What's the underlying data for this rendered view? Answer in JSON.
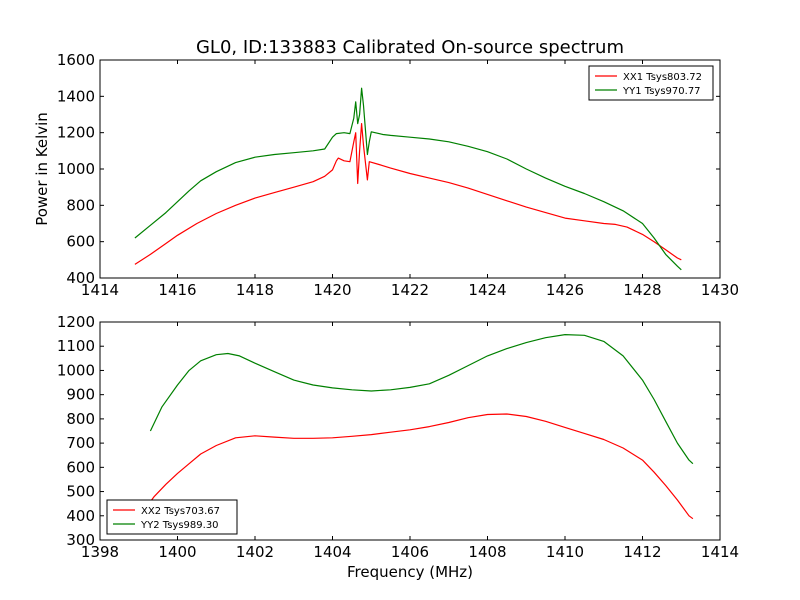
{
  "chart_data": [
    {
      "type": "line",
      "title": "GL0, ID:133883 Calibrated On-source spectrum",
      "xlabel": "",
      "ylabel": "Power in Kelvin",
      "xlim": [
        1414,
        1430
      ],
      "ylim": [
        400,
        1600
      ],
      "xticks": [
        1414,
        1416,
        1418,
        1420,
        1422,
        1424,
        1426,
        1428,
        1430
      ],
      "yticks": [
        400,
        600,
        800,
        1000,
        1200,
        1400,
        1600
      ],
      "grid": false,
      "legend_position": "top-right",
      "series": [
        {
          "name": "XX1 Tsys803.72",
          "color": "#ff0000",
          "points": [
            [
              1414.9,
              475
            ],
            [
              1415.3,
              530
            ],
            [
              1415.7,
              590
            ],
            [
              1416,
              635
            ],
            [
              1416.5,
              700
            ],
            [
              1417,
              755
            ],
            [
              1417.5,
              800
            ],
            [
              1418,
              840
            ],
            [
              1418.5,
              870
            ],
            [
              1419,
              900
            ],
            [
              1419.5,
              930
            ],
            [
              1419.8,
              960
            ],
            [
              1420.0,
              995
            ],
            [
              1420.1,
              1045
            ],
            [
              1420.15,
              1060
            ],
            [
              1420.3,
              1045
            ],
            [
              1420.45,
              1040
            ],
            [
              1420.55,
              1150
            ],
            [
              1420.6,
              1200
            ],
            [
              1420.65,
              920
            ],
            [
              1420.7,
              1100
            ],
            [
              1420.75,
              1250
            ],
            [
              1420.8,
              1130
            ],
            [
              1420.9,
              940
            ],
            [
              1420.95,
              1040
            ],
            [
              1421.2,
              1025
            ],
            [
              1421.5,
              1005
            ],
            [
              1422,
              975
            ],
            [
              1422.5,
              950
            ],
            [
              1423,
              925
            ],
            [
              1423.5,
              895
            ],
            [
              1424,
              860
            ],
            [
              1424.5,
              825
            ],
            [
              1425,
              790
            ],
            [
              1425.5,
              760
            ],
            [
              1426,
              730
            ],
            [
              1426.5,
              715
            ],
            [
              1427,
              700
            ],
            [
              1427.3,
              695
            ],
            [
              1427.6,
              680
            ],
            [
              1428,
              640
            ],
            [
              1428.3,
              600
            ],
            [
              1428.6,
              555
            ],
            [
              1428.9,
              510
            ],
            [
              1429.0,
              500
            ]
          ]
        },
        {
          "name": "YY1 Tsys970.77",
          "color": "#008000",
          "points": [
            [
              1414.9,
              620
            ],
            [
              1415.3,
              690
            ],
            [
              1415.7,
              760
            ],
            [
              1416,
              820
            ],
            [
              1416.3,
              880
            ],
            [
              1416.6,
              935
            ],
            [
              1417,
              985
            ],
            [
              1417.5,
              1035
            ],
            [
              1418,
              1065
            ],
            [
              1418.5,
              1080
            ],
            [
              1419,
              1090
            ],
            [
              1419.5,
              1100
            ],
            [
              1419.8,
              1110
            ],
            [
              1420.0,
              1175
            ],
            [
              1420.1,
              1195
            ],
            [
              1420.3,
              1200
            ],
            [
              1420.45,
              1195
            ],
            [
              1420.55,
              1280
            ],
            [
              1420.6,
              1370
            ],
            [
              1420.65,
              1250
            ],
            [
              1420.7,
              1300
            ],
            [
              1420.75,
              1445
            ],
            [
              1420.8,
              1350
            ],
            [
              1420.9,
              1080
            ],
            [
              1420.95,
              1150
            ],
            [
              1421.0,
              1205
            ],
            [
              1421.3,
              1190
            ],
            [
              1421.5,
              1185
            ],
            [
              1422,
              1175
            ],
            [
              1422.5,
              1165
            ],
            [
              1423,
              1150
            ],
            [
              1423.5,
              1125
            ],
            [
              1424,
              1095
            ],
            [
              1424.5,
              1055
            ],
            [
              1425,
              1000
            ],
            [
              1425.5,
              950
            ],
            [
              1426,
              905
            ],
            [
              1426.5,
              865
            ],
            [
              1427,
              820
            ],
            [
              1427.5,
              770
            ],
            [
              1428,
              700
            ],
            [
              1428.3,
              620
            ],
            [
              1428.6,
              530
            ],
            [
              1428.9,
              465
            ],
            [
              1429.0,
              445
            ]
          ]
        }
      ]
    },
    {
      "type": "line",
      "title": "",
      "xlabel": "Frequency (MHz)",
      "ylabel": "",
      "xlim": [
        1398,
        1414
      ],
      "ylim": [
        300,
        1200
      ],
      "xticks": [
        1398,
        1400,
        1402,
        1404,
        1406,
        1408,
        1410,
        1412,
        1414
      ],
      "yticks": [
        300,
        400,
        500,
        600,
        700,
        800,
        900,
        1000,
        1100,
        1200
      ],
      "grid": false,
      "legend_position": "bottom-left",
      "series": [
        {
          "name": "XX2 Tsys703.67",
          "color": "#ff0000",
          "points": [
            [
              1399.1,
              415
            ],
            [
              1399.4,
              480
            ],
            [
              1399.7,
              530
            ],
            [
              1400,
              575
            ],
            [
              1400.3,
              615
            ],
            [
              1400.6,
              655
            ],
            [
              1401,
              690
            ],
            [
              1401.5,
              722
            ],
            [
              1402,
              730
            ],
            [
              1402.5,
              725
            ],
            [
              1403,
              720
            ],
            [
              1403.5,
              720
            ],
            [
              1404,
              722
            ],
            [
              1404.5,
              728
            ],
            [
              1405,
              735
            ],
            [
              1405.5,
              745
            ],
            [
              1406,
              755
            ],
            [
              1406.5,
              768
            ],
            [
              1407,
              785
            ],
            [
              1407.5,
              805
            ],
            [
              1408,
              818
            ],
            [
              1408.5,
              820
            ],
            [
              1409,
              810
            ],
            [
              1409.5,
              790
            ],
            [
              1410,
              765
            ],
            [
              1410.5,
              740
            ],
            [
              1411,
              715
            ],
            [
              1411.5,
              680
            ],
            [
              1412,
              630
            ],
            [
              1412.3,
              580
            ],
            [
              1412.6,
              525
            ],
            [
              1412.9,
              465
            ],
            [
              1413.2,
              400
            ],
            [
              1413.3,
              388
            ]
          ]
        },
        {
          "name": "YY2 Tsys989.30",
          "color": "#008000",
          "points": [
            [
              1399.3,
              750
            ],
            [
              1399.6,
              850
            ],
            [
              1400,
              940
            ],
            [
              1400.3,
              1000
            ],
            [
              1400.6,
              1040
            ],
            [
              1401,
              1065
            ],
            [
              1401.3,
              1070
            ],
            [
              1401.6,
              1060
            ],
            [
              1402,
              1030
            ],
            [
              1402.5,
              995
            ],
            [
              1403,
              960
            ],
            [
              1403.5,
              940
            ],
            [
              1404,
              928
            ],
            [
              1404.5,
              920
            ],
            [
              1405,
              915
            ],
            [
              1405.5,
              920
            ],
            [
              1406,
              930
            ],
            [
              1406.5,
              945
            ],
            [
              1407,
              980
            ],
            [
              1407.5,
              1020
            ],
            [
              1408,
              1060
            ],
            [
              1408.5,
              1090
            ],
            [
              1409,
              1115
            ],
            [
              1409.5,
              1135
            ],
            [
              1410,
              1148
            ],
            [
              1410.5,
              1145
            ],
            [
              1411,
              1120
            ],
            [
              1411.5,
              1060
            ],
            [
              1412,
              960
            ],
            [
              1412.3,
              880
            ],
            [
              1412.6,
              790
            ],
            [
              1412.9,
              700
            ],
            [
              1413.2,
              630
            ],
            [
              1413.3,
              615
            ]
          ]
        }
      ]
    }
  ]
}
